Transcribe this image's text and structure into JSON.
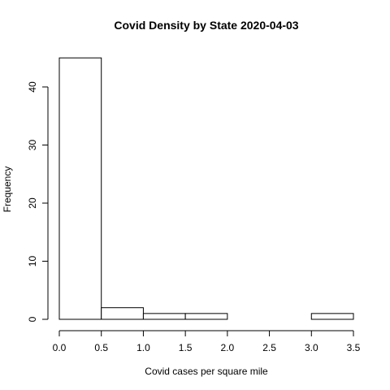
{
  "chart_data": {
    "type": "bar",
    "title": "Covid Density by State 2020-04-03",
    "xlabel": "Covid cases per square mile",
    "ylabel": "Frequency",
    "bins": [
      {
        "start": 0.0,
        "end": 0.5,
        "count": 45
      },
      {
        "start": 0.5,
        "end": 1.0,
        "count": 2
      },
      {
        "start": 1.0,
        "end": 1.5,
        "count": 1
      },
      {
        "start": 1.5,
        "end": 2.0,
        "count": 1
      },
      {
        "start": 2.0,
        "end": 2.5,
        "count": 0
      },
      {
        "start": 2.5,
        "end": 3.0,
        "count": 0
      },
      {
        "start": 3.0,
        "end": 3.5,
        "count": 1
      }
    ],
    "x_ticks": [
      0.0,
      0.5,
      1.0,
      1.5,
      2.0,
      2.5,
      3.0,
      3.5
    ],
    "x_tick_labels": [
      "0.0",
      "0.5",
      "1.0",
      "1.5",
      "2.0",
      "2.5",
      "3.0",
      "3.5"
    ],
    "y_ticks": [
      0,
      10,
      20,
      30,
      40
    ],
    "y_tick_labels": [
      "0",
      "10",
      "20",
      "30",
      "40"
    ],
    "xlim": [
      0.0,
      3.5
    ],
    "ylim": [
      0,
      45
    ],
    "grid": false,
    "legend": "none",
    "bar_fill": "#ffffff",
    "bar_stroke": "#000000"
  }
}
